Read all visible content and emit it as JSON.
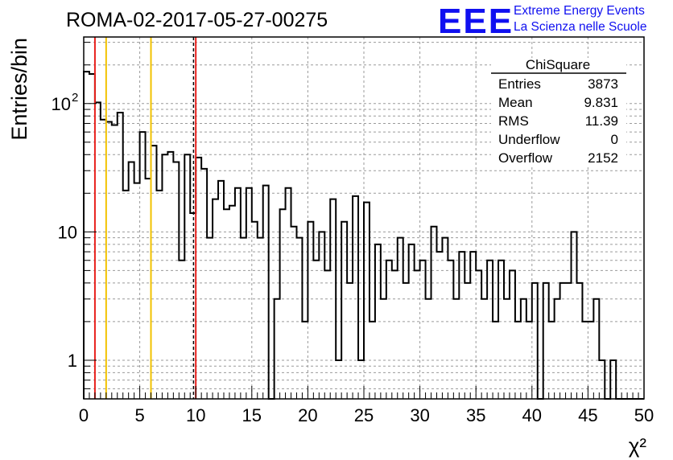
{
  "header": {
    "run_title": "ROMA-02-2017-05-27-00275",
    "logo_text": "EEE",
    "brand_line1": "Extreme Energy Events",
    "brand_line2": "La Scienza nelle Scuole"
  },
  "stats_box": {
    "title": "ChiSquare",
    "rows": [
      {
        "label": "Entries",
        "value": "3873"
      },
      {
        "label": "Mean",
        "value": "9.831"
      },
      {
        "label": "RMS",
        "value": "11.39"
      },
      {
        "label": "Underflow",
        "value": "0"
      },
      {
        "label": "Overflow",
        "value": "2152"
      }
    ]
  },
  "colors": {
    "histogram": "#000000",
    "red_line": "#e8201c",
    "yellow_line": "#f2c200",
    "grid": "#9a9a9a",
    "brand": "#1010f0"
  },
  "chart_data": {
    "type": "histogram",
    "xlabel": "χ²",
    "ylabel": "Entries/bin",
    "xlim": [
      0,
      50
    ],
    "ylim": [
      0.5,
      330
    ],
    "yscale": "log",
    "grid": true,
    "bin_width": 0.5,
    "x_ticks": [
      "0",
      "5",
      "10",
      "15",
      "20",
      "25",
      "30",
      "35",
      "40",
      "45",
      "50"
    ],
    "y_ticks": [
      {
        "value": 1,
        "label": "1"
      },
      {
        "value": 10,
        "label": "10"
      },
      {
        "value": 100,
        "label": "10",
        "exp": "2"
      }
    ],
    "counts": [
      177,
      170,
      102,
      75,
      72,
      68,
      85,
      21,
      35,
      24,
      60,
      26,
      47,
      21,
      40,
      42,
      35,
      6,
      40,
      14,
      38,
      31,
      9,
      18,
      25,
      15,
      16,
      22,
      9,
      22,
      12,
      9,
      23,
      0,
      3,
      15,
      22,
      11,
      9,
      2,
      12,
      6,
      10,
      5,
      18,
      1,
      12,
      4,
      19,
      1,
      17,
      2,
      8,
      3,
      6,
      5,
      9,
      4,
      8,
      5,
      6,
      3,
      11,
      7,
      9,
      6,
      3,
      7,
      4,
      7,
      5,
      3,
      6,
      2,
      6,
      3,
      5,
      2,
      3,
      2,
      4,
      0,
      4,
      2,
      3,
      4,
      4,
      10,
      4,
      2,
      2,
      3,
      1,
      0.5,
      1,
      0.5,
      0.5,
      0,
      0,
      0
    ],
    "vertical_lines": [
      {
        "x": 1,
        "color": "red",
        "style": "solid"
      },
      {
        "x": 2,
        "color": "yellow",
        "style": "solid"
      },
      {
        "x": 6,
        "color": "yellow",
        "style": "solid"
      },
      {
        "x": 9.8,
        "color": "black",
        "style": "dashed"
      },
      {
        "x": 10,
        "color": "red",
        "style": "solid"
      }
    ]
  }
}
